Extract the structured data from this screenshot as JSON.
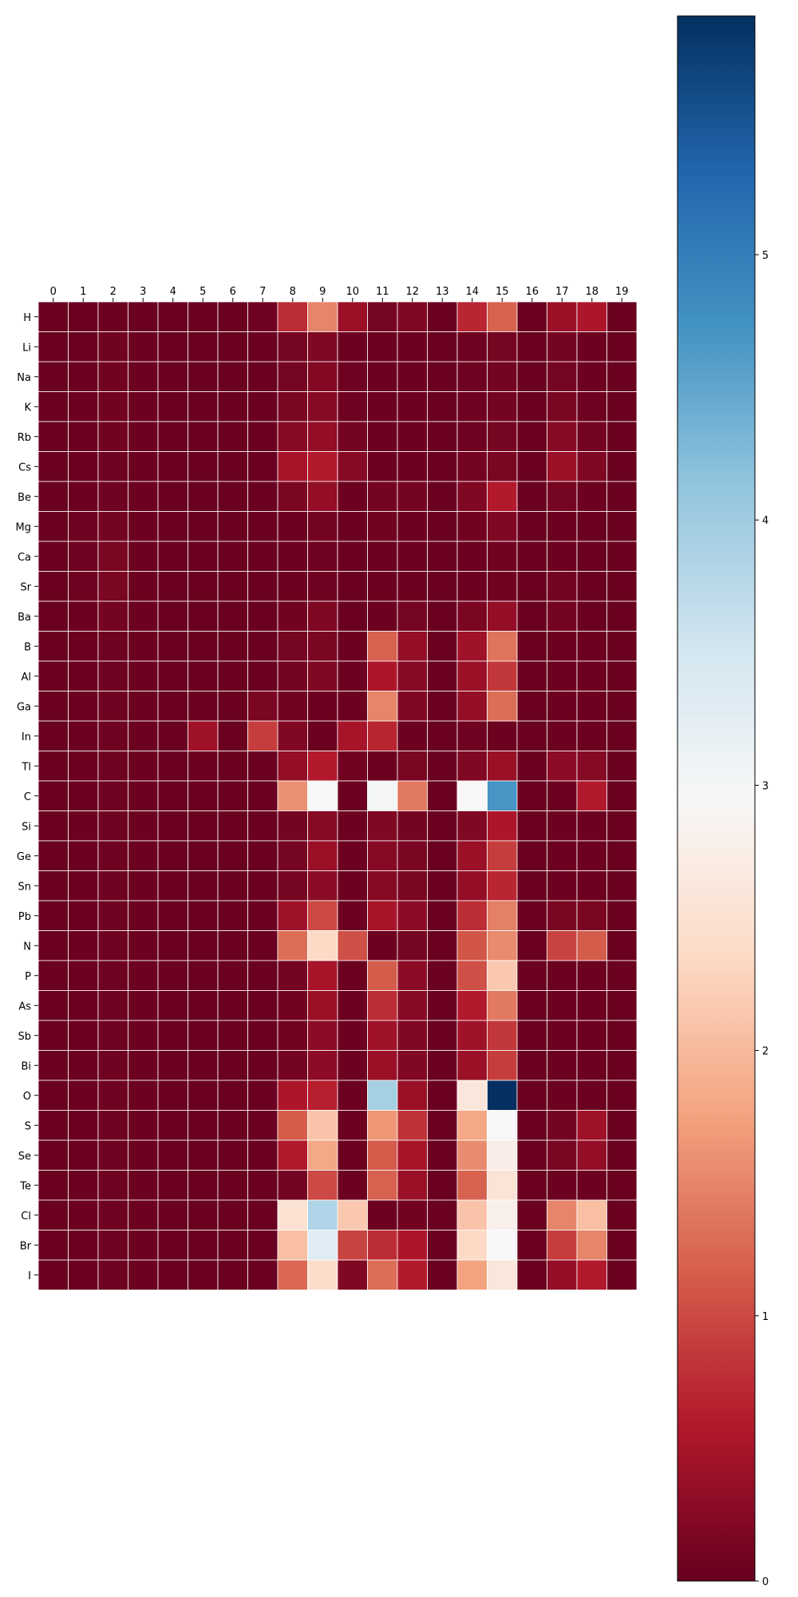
{
  "chart_data": {
    "type": "heatmap",
    "title": "",
    "xlabel": "",
    "ylabel": "",
    "x_categories": [
      "0",
      "1",
      "2",
      "3",
      "4",
      "5",
      "6",
      "7",
      "8",
      "9",
      "10",
      "11",
      "12",
      "13",
      "14",
      "15",
      "16",
      "17",
      "18",
      "19"
    ],
    "y_categories": [
      "H",
      "Li",
      "Na",
      "K",
      "Rb",
      "Cs",
      "Be",
      "Mg",
      "Ca",
      "Sr",
      "Ba",
      "B",
      "Al",
      "Ga",
      "In",
      "Tl",
      "C",
      "Si",
      "Ge",
      "Sn",
      "Pb",
      "N",
      "P",
      "As",
      "Sb",
      "Bi",
      "O",
      "S",
      "Se",
      "Te",
      "Cl",
      "Br",
      "I"
    ],
    "colormap": "RdBu",
    "vmin": 0,
    "vmax": 5.9,
    "colorbar_ticks": [
      0,
      1,
      2,
      3,
      4,
      5
    ],
    "grid": true,
    "values": [
      [
        0.02,
        0.04,
        0.05,
        0.03,
        0.03,
        0.04,
        0.02,
        0.06,
        0.75,
        1.5,
        0.4,
        0.12,
        0.2,
        0.03,
        0.7,
        1.2,
        0.02,
        0.4,
        0.55,
        0.02
      ],
      [
        0.02,
        0.03,
        0.07,
        0.04,
        0.03,
        0.02,
        0.02,
        0.03,
        0.12,
        0.2,
        0.05,
        0.04,
        0.05,
        0.03,
        0.06,
        0.12,
        0.02,
        0.1,
        0.05,
        0.02
      ],
      [
        0.02,
        0.04,
        0.08,
        0.04,
        0.03,
        0.02,
        0.02,
        0.03,
        0.12,
        0.22,
        0.06,
        0.04,
        0.05,
        0.03,
        0.06,
        0.1,
        0.02,
        0.12,
        0.05,
        0.02
      ],
      [
        0.02,
        0.04,
        0.08,
        0.04,
        0.03,
        0.02,
        0.02,
        0.03,
        0.15,
        0.25,
        0.06,
        0.04,
        0.05,
        0.03,
        0.06,
        0.1,
        0.02,
        0.15,
        0.06,
        0.02
      ],
      [
        0.02,
        0.04,
        0.08,
        0.04,
        0.03,
        0.02,
        0.02,
        0.03,
        0.25,
        0.35,
        0.1,
        0.04,
        0.05,
        0.03,
        0.06,
        0.12,
        0.02,
        0.25,
        0.1,
        0.02
      ],
      [
        0.02,
        0.04,
        0.06,
        0.04,
        0.03,
        0.02,
        0.02,
        0.03,
        0.5,
        0.6,
        0.25,
        0.04,
        0.05,
        0.03,
        0.1,
        0.15,
        0.02,
        0.4,
        0.2,
        0.02
      ],
      [
        0.02,
        0.04,
        0.06,
        0.04,
        0.03,
        0.02,
        0.02,
        0.03,
        0.15,
        0.35,
        0.04,
        0.1,
        0.1,
        0.03,
        0.2,
        0.6,
        0.02,
        0.12,
        0.05,
        0.02
      ],
      [
        0.02,
        0.06,
        0.1,
        0.04,
        0.03,
        0.02,
        0.02,
        0.03,
        0.05,
        0.1,
        0.03,
        0.08,
        0.05,
        0.03,
        0.08,
        0.2,
        0.02,
        0.05,
        0.03,
        0.02
      ],
      [
        0.02,
        0.06,
        0.15,
        0.04,
        0.03,
        0.02,
        0.02,
        0.03,
        0.04,
        0.06,
        0.03,
        0.04,
        0.04,
        0.03,
        0.04,
        0.08,
        0.02,
        0.05,
        0.03,
        0.02
      ],
      [
        0.02,
        0.06,
        0.15,
        0.04,
        0.03,
        0.02,
        0.02,
        0.03,
        0.04,
        0.06,
        0.03,
        0.04,
        0.04,
        0.03,
        0.04,
        0.08,
        0.02,
        0.1,
        0.03,
        0.02
      ],
      [
        0.02,
        0.05,
        0.1,
        0.04,
        0.03,
        0.02,
        0.02,
        0.03,
        0.08,
        0.2,
        0.03,
        0.04,
        0.12,
        0.03,
        0.15,
        0.35,
        0.02,
        0.1,
        0.03,
        0.02
      ],
      [
        0.02,
        0.04,
        0.06,
        0.04,
        0.03,
        0.02,
        0.02,
        0.03,
        0.12,
        0.15,
        0.04,
        1.2,
        0.35,
        0.03,
        0.45,
        1.35,
        0.02,
        0.05,
        0.05,
        0.02
      ],
      [
        0.02,
        0.04,
        0.06,
        0.04,
        0.03,
        0.02,
        0.02,
        0.03,
        0.1,
        0.2,
        0.04,
        0.55,
        0.25,
        0.03,
        0.4,
        0.85,
        0.02,
        0.05,
        0.05,
        0.02
      ],
      [
        0.02,
        0.04,
        0.06,
        0.04,
        0.03,
        0.04,
        0.02,
        0.15,
        0.08,
        0.05,
        0.04,
        1.5,
        0.2,
        0.03,
        0.35,
        1.3,
        0.02,
        0.05,
        0.05,
        0.02
      ],
      [
        0.02,
        0.04,
        0.06,
        0.04,
        0.03,
        0.45,
        0.02,
        0.9,
        0.2,
        0.05,
        0.5,
        0.7,
        0.04,
        0.03,
        0.06,
        0.05,
        0.02,
        0.05,
        0.05,
        0.02
      ],
      [
        0.02,
        0.04,
        0.06,
        0.04,
        0.03,
        0.04,
        0.02,
        0.03,
        0.35,
        0.6,
        0.08,
        0.04,
        0.15,
        0.03,
        0.2,
        0.4,
        0.02,
        0.3,
        0.25,
        0.02
      ],
      [
        0.02,
        0.04,
        0.06,
        0.04,
        0.03,
        0.02,
        0.02,
        0.03,
        1.6,
        2.95,
        0.04,
        3.0,
        1.4,
        0.03,
        2.95,
        4.7,
        0.02,
        0.04,
        0.6,
        0.02
      ],
      [
        0.02,
        0.04,
        0.06,
        0.04,
        0.03,
        0.02,
        0.02,
        0.03,
        0.1,
        0.25,
        0.04,
        0.2,
        0.1,
        0.03,
        0.2,
        0.55,
        0.02,
        0.05,
        0.05,
        0.02
      ],
      [
        0.02,
        0.04,
        0.06,
        0.04,
        0.03,
        0.02,
        0.02,
        0.03,
        0.12,
        0.4,
        0.04,
        0.25,
        0.15,
        0.03,
        0.4,
        0.9,
        0.02,
        0.05,
        0.05,
        0.02
      ],
      [
        0.02,
        0.04,
        0.06,
        0.04,
        0.03,
        0.02,
        0.02,
        0.03,
        0.12,
        0.3,
        0.04,
        0.25,
        0.15,
        0.03,
        0.35,
        0.7,
        0.02,
        0.05,
        0.05,
        0.02
      ],
      [
        0.02,
        0.04,
        0.06,
        0.04,
        0.03,
        0.02,
        0.02,
        0.03,
        0.45,
        1.0,
        0.04,
        0.5,
        0.3,
        0.03,
        0.75,
        1.45,
        0.02,
        0.15,
        0.15,
        0.02
      ],
      [
        0.02,
        0.04,
        0.06,
        0.04,
        0.03,
        0.02,
        0.02,
        0.03,
        1.3,
        2.35,
        1.05,
        0.04,
        0.12,
        0.03,
        1.1,
        1.55,
        0.02,
        0.95,
        1.15,
        0.02
      ],
      [
        0.02,
        0.04,
        0.06,
        0.04,
        0.03,
        0.02,
        0.02,
        0.03,
        0.1,
        0.5,
        0.04,
        1.15,
        0.3,
        0.03,
        1.05,
        2.15,
        0.02,
        0.05,
        0.05,
        0.02
      ],
      [
        0.02,
        0.04,
        0.06,
        0.04,
        0.03,
        0.02,
        0.02,
        0.03,
        0.08,
        0.4,
        0.04,
        0.75,
        0.25,
        0.03,
        0.6,
        1.4,
        0.02,
        0.05,
        0.05,
        0.02
      ],
      [
        0.02,
        0.04,
        0.06,
        0.04,
        0.03,
        0.02,
        0.02,
        0.03,
        0.08,
        0.3,
        0.04,
        0.45,
        0.2,
        0.03,
        0.45,
        0.85,
        0.02,
        0.05,
        0.05,
        0.02
      ],
      [
        0.02,
        0.04,
        0.06,
        0.04,
        0.03,
        0.02,
        0.02,
        0.03,
        0.1,
        0.3,
        0.04,
        0.4,
        0.2,
        0.03,
        0.4,
        0.9,
        0.02,
        0.05,
        0.05,
        0.02
      ],
      [
        0.02,
        0.04,
        0.06,
        0.04,
        0.03,
        0.02,
        0.02,
        0.03,
        0.55,
        0.65,
        0.04,
        3.95,
        0.4,
        0.03,
        2.6,
        5.9,
        0.02,
        0.05,
        0.05,
        0.02
      ],
      [
        0.02,
        0.04,
        0.06,
        0.04,
        0.03,
        0.02,
        0.02,
        0.03,
        1.15,
        2.1,
        0.04,
        1.65,
        0.8,
        0.03,
        1.8,
        2.95,
        0.02,
        0.1,
        0.45,
        0.02
      ],
      [
        0.02,
        0.04,
        0.06,
        0.04,
        0.03,
        0.02,
        0.02,
        0.03,
        0.6,
        1.8,
        0.04,
        1.15,
        0.5,
        0.03,
        1.55,
        2.75,
        0.02,
        0.15,
        0.35,
        0.02
      ],
      [
        0.02,
        0.04,
        0.06,
        0.04,
        0.03,
        0.02,
        0.02,
        0.03,
        0.1,
        1.0,
        0.04,
        1.2,
        0.4,
        0.03,
        1.2,
        2.55,
        0.02,
        0.05,
        0.05,
        0.02
      ],
      [
        0.02,
        0.04,
        0.06,
        0.04,
        0.03,
        0.02,
        0.02,
        0.03,
        2.5,
        3.85,
        2.15,
        0.04,
        0.08,
        0.03,
        2.1,
        2.8,
        0.02,
        1.5,
        2.05,
        0.02
      ],
      [
        0.02,
        0.04,
        0.06,
        0.04,
        0.03,
        0.02,
        0.02,
        0.03,
        2.05,
        3.3,
        0.95,
        0.75,
        0.55,
        0.03,
        2.35,
        2.95,
        0.02,
        0.9,
        1.5,
        0.02
      ],
      [
        0.02,
        0.04,
        0.06,
        0.04,
        0.03,
        0.02,
        0.02,
        0.03,
        1.25,
        2.4,
        0.2,
        1.3,
        0.6,
        0.03,
        1.75,
        2.6,
        0.02,
        0.35,
        0.6,
        0.02
      ]
    ]
  }
}
